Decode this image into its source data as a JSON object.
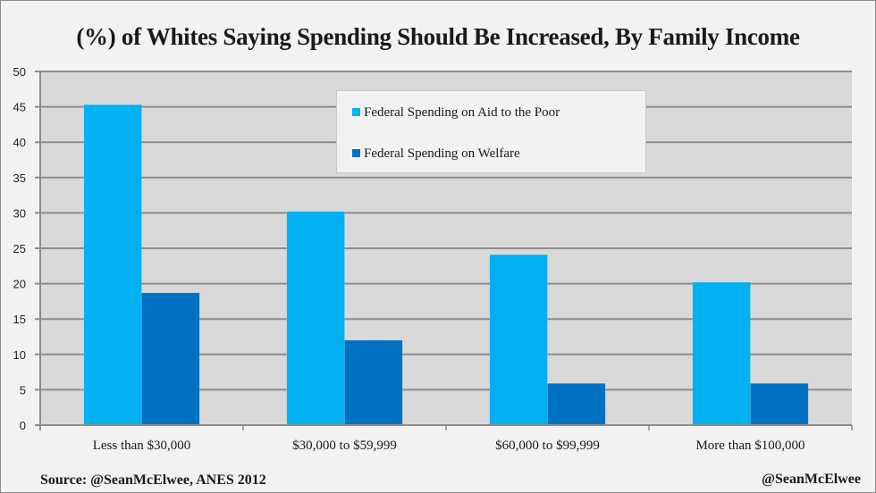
{
  "chart_data": {
    "type": "bar",
    "title": "(%) of Whites Saying Spending Should Be Increased, By Family Income",
    "xlabel": "",
    "ylabel": "",
    "ylim": [
      0,
      50
    ],
    "yticks": [
      "0",
      "5",
      "10",
      "15",
      "20",
      "25",
      "30",
      "35",
      "40",
      "45",
      "50"
    ],
    "grid": true,
    "legend_position": "top-center",
    "categories": [
      "Less than $30,000",
      "$30,000 to $59,999",
      "$60,000 to $99,999",
      "More than $100,000"
    ],
    "series": [
      {
        "name": "Federal Spending on Aid to the Poor",
        "color": "#00b0f0",
        "values": [
          45.3,
          30.2,
          24.1,
          20.2
        ]
      },
      {
        "name": "Federal Spending on Welfare",
        "color": "#0070c0",
        "values": [
          18.7,
          12.0,
          5.9,
          5.9
        ]
      }
    ]
  },
  "footer": {
    "source": "Source: @SeanMcElwee, ANES 2012",
    "handle": "@SeanMcElwee"
  },
  "colors": {
    "plot_bg": "#d9d9d9",
    "page_bg": "#f2f2f2",
    "gridline": "#8c8c8c"
  }
}
